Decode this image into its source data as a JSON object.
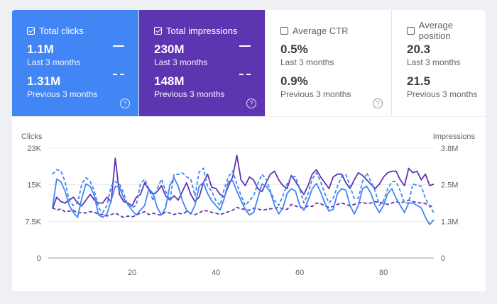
{
  "cards": [
    {
      "label": "Total clicks",
      "checked": true,
      "value": "1.1M",
      "period": "Last 3 months",
      "prev_value": "1.31M",
      "prev_period": "Previous 3 months",
      "bg": "#4285f4"
    },
    {
      "label": "Total impressions",
      "checked": true,
      "value": "230M",
      "period": "Last 3 months",
      "prev_value": "148M",
      "prev_period": "Previous 3 months",
      "bg": "#5e35b1"
    },
    {
      "label": "Average CTR",
      "checked": false,
      "value": "0.5%",
      "period": "Last 3 months",
      "prev_value": "0.9%",
      "prev_period": "Previous 3 months"
    },
    {
      "label": "Average position",
      "checked": false,
      "value": "20.3",
      "period": "Last 3 months",
      "prev_value": "21.5",
      "prev_period": "Previous 3 months"
    }
  ],
  "chart_data": {
    "type": "line",
    "ylabel_left": "Clicks",
    "ylabel_right": "Impressions",
    "y_left_ticks": [
      "0",
      "7.5K",
      "15K",
      "23K"
    ],
    "y_right_ticks": [
      "0",
      "1.3M",
      "2.5M",
      "3.8M"
    ],
    "ylim_left": [
      0,
      23000
    ],
    "ylim_right": [
      0,
      3800000
    ],
    "x_ticks": [
      20,
      40,
      60,
      80
    ],
    "xlim": [
      0,
      92
    ],
    "grid": true,
    "x": [
      1,
      2,
      3,
      4,
      5,
      6,
      7,
      8,
      9,
      10,
      11,
      12,
      13,
      14,
      15,
      16,
      17,
      18,
      19,
      20,
      21,
      22,
      23,
      24,
      25,
      26,
      27,
      28,
      29,
      30,
      31,
      32,
      33,
      34,
      35,
      36,
      37,
      38,
      39,
      40,
      41,
      42,
      43,
      44,
      45,
      46,
      47,
      48,
      49,
      50,
      51,
      52,
      53,
      54,
      55,
      56,
      57,
      58,
      59,
      60,
      61,
      62,
      63,
      64,
      65,
      66,
      67,
      68,
      69,
      70,
      71,
      72,
      73,
      74,
      75,
      76,
      77,
      78,
      79,
      80,
      81,
      82,
      83,
      84,
      85,
      86,
      87,
      88,
      89,
      90,
      91,
      92
    ],
    "series": [
      {
        "name": "",
        "color": "#5e35b1",
        "dashed": false,
        "axis": "right",
        "values": [
          1.7,
          2.1,
          1.95,
          1.9,
          2.0,
          2.1,
          1.9,
          1.8,
          2.0,
          2.2,
          2.0,
          1.9,
          1.9,
          2.1,
          1.95,
          3.45,
          2.2,
          1.95,
          1.9,
          1.8,
          2.1,
          2.2,
          2.6,
          2.35,
          2.2,
          2.3,
          2.5,
          2.15,
          2.0,
          2.15,
          2.0,
          2.3,
          2.6,
          2.2,
          1.95,
          2.1,
          2.6,
          2.9,
          2.45,
          2.4,
          2.2,
          2.1,
          2.5,
          2.8,
          3.55,
          2.7,
          2.5,
          2.8,
          2.7,
          2.4,
          2.3,
          2.6,
          2.9,
          3.0,
          2.7,
          2.5,
          2.4,
          2.85,
          2.65,
          2.4,
          2.2,
          2.5,
          2.9,
          3.05,
          2.8,
          2.6,
          2.4,
          2.8,
          2.9,
          2.9,
          2.6,
          2.4,
          2.7,
          2.95,
          2.85,
          2.7,
          2.55,
          2.4,
          2.55,
          2.8,
          2.95,
          3.0,
          3.0,
          2.7,
          2.5,
          3.1,
          2.95,
          3.0,
          2.7,
          2.9,
          2.5,
          2.55
        ]
      },
      {
        "name": "",
        "color": "#5e35b1",
        "dashed": true,
        "axis": "right",
        "values": [
          1.75,
          1.65,
          1.7,
          1.6,
          1.62,
          1.65,
          1.55,
          1.58,
          1.55,
          1.6,
          1.58,
          1.52,
          1.5,
          1.45,
          1.5,
          1.55,
          1.48,
          1.4,
          1.45,
          1.42,
          1.48,
          1.55,
          1.6,
          1.5,
          1.55,
          1.5,
          1.48,
          1.6,
          1.55,
          1.5,
          1.55,
          1.52,
          1.6,
          1.55,
          1.5,
          1.55,
          1.65,
          1.62,
          1.58,
          1.55,
          1.5,
          1.55,
          1.6,
          1.65,
          1.75,
          1.7,
          1.68,
          1.65,
          1.72,
          1.7,
          1.65,
          1.68,
          1.7,
          1.72,
          1.75,
          1.7,
          1.68,
          1.85,
          1.8,
          1.75,
          1.72,
          1.8,
          1.78,
          1.9,
          1.88,
          1.8,
          1.75,
          1.78,
          1.85,
          1.9,
          1.85,
          1.8,
          1.85,
          1.9,
          1.92,
          1.88,
          1.9,
          1.95,
          1.92,
          1.9,
          1.85,
          1.9,
          1.95,
          1.9,
          1.95,
          2.0,
          1.95,
          1.92,
          1.9,
          1.88,
          1.8,
          1.78
        ]
      },
      {
        "name": "",
        "color": "#4285f4",
        "dashed": false,
        "axis": "left",
        "values": [
          10500,
          16500,
          16000,
          14000,
          11000,
          9500,
          8500,
          12500,
          15500,
          15000,
          13000,
          9000,
          8500,
          9200,
          12000,
          15000,
          14800,
          12500,
          11200,
          10000,
          9000,
          10000,
          11000,
          14500,
          13500,
          10500,
          9000,
          10500,
          15200,
          16800,
          15000,
          12000,
          10000,
          9200,
          11000,
          15000,
          15800,
          13500,
          12000,
          11000,
          10000,
          12500,
          16000,
          16200,
          14000,
          12000,
          10200,
          9000,
          9500,
          12500,
          15500,
          15000,
          13800,
          11000,
          9200,
          10500,
          13500,
          14500,
          14000,
          11000,
          10000,
          12000,
          14500,
          15600,
          13800,
          11500,
          9800,
          10200,
          13500,
          14500,
          14200,
          11000,
          9200,
          11000,
          14500,
          15000,
          13500,
          11000,
          9500,
          11000,
          13500,
          14500,
          12500,
          11000,
          9500,
          11500,
          11500,
          11000,
          10500,
          8500,
          7000,
          8000
        ]
      },
      {
        "name": "",
        "color": "#4285f4",
        "dashed": true,
        "axis": "left",
        "values": [
          17500,
          18500,
          18200,
          16000,
          12000,
          11000,
          11500,
          15500,
          16800,
          16000,
          14000,
          10500,
          9500,
          11000,
          15000,
          16000,
          15500,
          13500,
          11000,
          10500,
          11000,
          15500,
          16500,
          14500,
          12000,
          14500,
          16500,
          14000,
          12000,
          17500,
          17500,
          17800,
          17000,
          16500,
          13000,
          18000,
          18800,
          15000,
          14000,
          12000,
          11000,
          14500,
          17000,
          18200,
          15500,
          13000,
          11000,
          12000,
          13000,
          15500,
          17500,
          16500,
          14000,
          12000,
          11000,
          13000,
          15500,
          17000,
          17000,
          14500,
          11500,
          13500,
          16500,
          17800,
          16000,
          13500,
          11500,
          12500,
          15000,
          17000,
          17500,
          15000,
          12500,
          12500,
          16000,
          17800,
          16000,
          14000,
          11000,
          12000,
          14500,
          16000,
          16000,
          14000,
          11500,
          11500,
          15500,
          15200,
          15000,
          12500,
          10800,
          9500
        ]
      }
    ]
  }
}
